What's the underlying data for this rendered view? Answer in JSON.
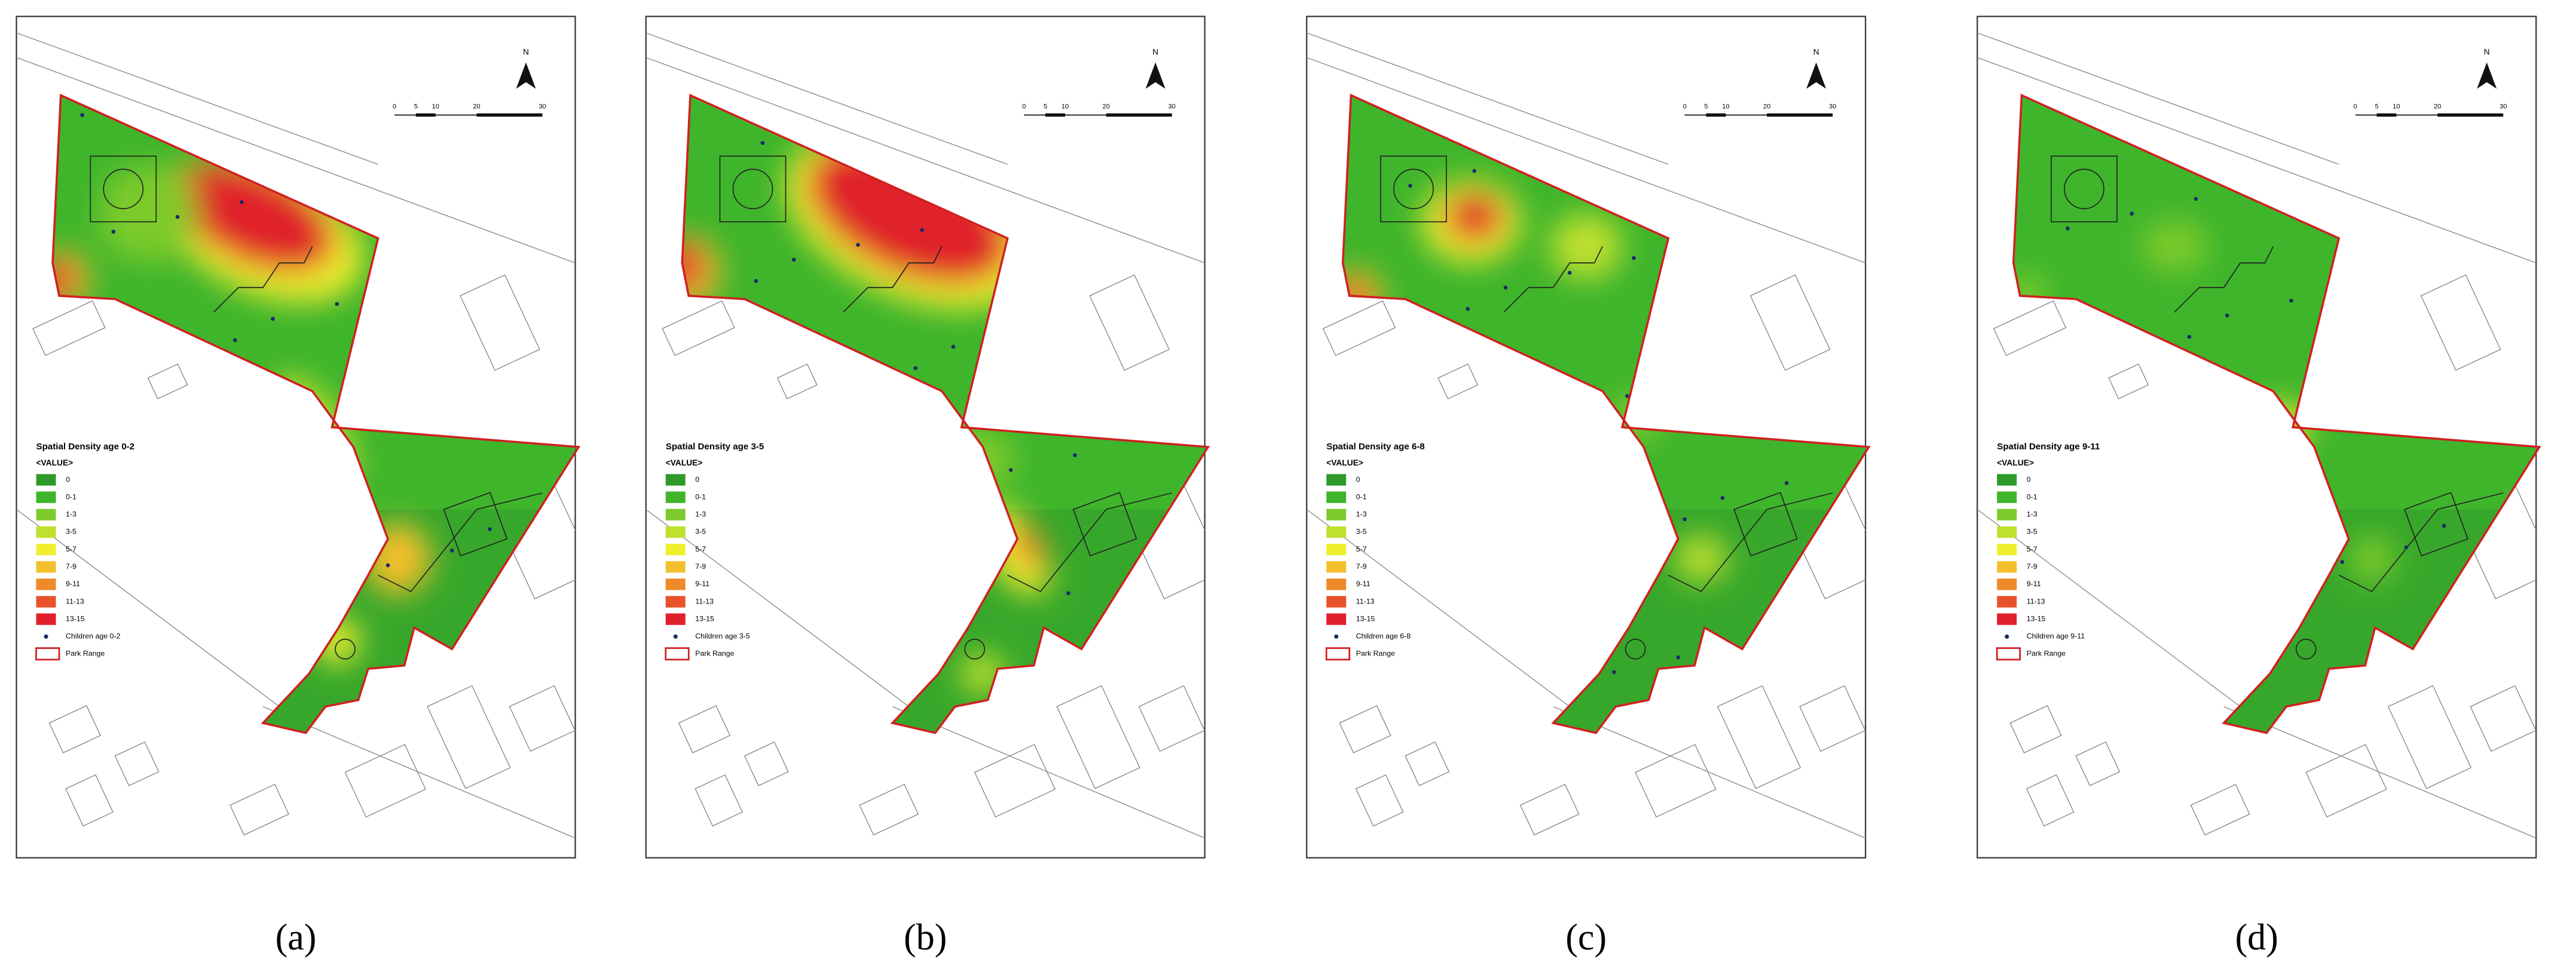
{
  "panels": [
    {
      "caption": "(a)",
      "legend_title": "Spatial Density age 0-2",
      "points_label": "Children age 0-2"
    },
    {
      "caption": "(b)",
      "legend_title": "Spatial Density age 3-5",
      "points_label": "Children age 3-5"
    },
    {
      "caption": "(c)",
      "legend_title": "Spatial Density age 6-8",
      "points_label": "Children age 6-8"
    },
    {
      "caption": "(d)",
      "legend_title": "Spatial Density age 9-11",
      "points_label": "Children age 9-11"
    }
  ],
  "legend_subtitle": "<VALUE>",
  "legend_classes": [
    {
      "label": "0",
      "color": "#2f9a2a"
    },
    {
      "label": "0-1",
      "color": "#3fb52c"
    },
    {
      "label": "1-3",
      "color": "#7dcb2c"
    },
    {
      "label": "3-5",
      "color": "#bfe02e"
    },
    {
      "label": "5-7",
      "color": "#f0ef2e"
    },
    {
      "label": "7-9",
      "color": "#f4bf2c"
    },
    {
      "label": "9-11",
      "color": "#ef8a2a"
    },
    {
      "label": "11-13",
      "color": "#e8522a"
    },
    {
      "label": "13-15",
      "color": "#e0202a"
    }
  ],
  "park_label": "Park Range",
  "north": "N",
  "scale_bar": [
    "0",
    "5",
    "10",
    "20",
    "30"
  ]
}
